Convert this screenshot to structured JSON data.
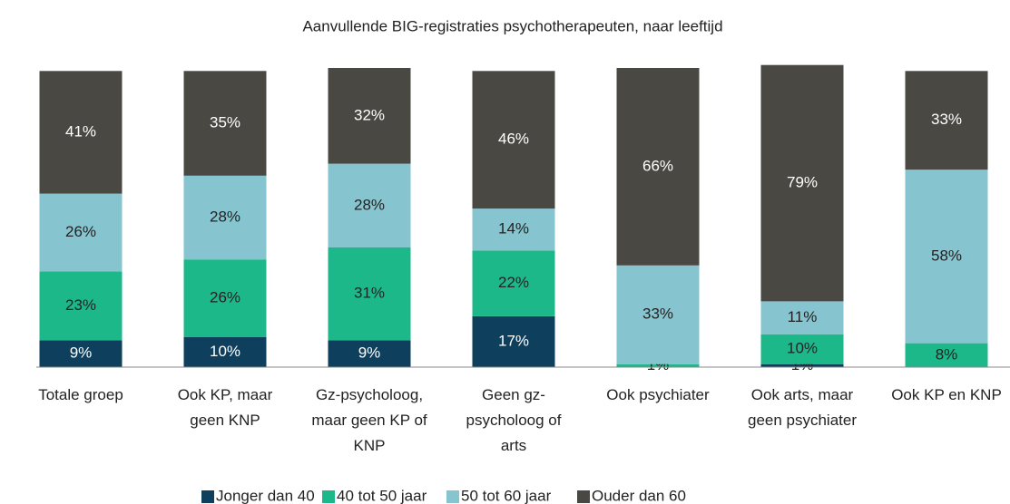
{
  "chart_data": {
    "type": "stacked_bar_100",
    "title": "Aanvullende BIG-registraties psychotherapeuten, naar leeftijd",
    "categories": [
      "Totale groep",
      "Ook KP, maar\ngeen KNP",
      "Gz-psycholoog,\nmaar geen KP of\nKNP",
      "Geen gz-\npsycholoog of\narts",
      "Ook psychiater",
      "Ook arts, maar\ngeen psychiater",
      "Ook KP en KNP"
    ],
    "ylim": [
      0,
      100
    ],
    "series": [
      {
        "name": "Jonger dan 40",
        "color": "#0e3f5c",
        "label_color": "#ffffff",
        "values": [
          9,
          10,
          9,
          17,
          null,
          1,
          null
        ],
        "value_labels": [
          "9%",
          "10%",
          "9%",
          "17%",
          null,
          "1%",
          null
        ]
      },
      {
        "name": "40 tot 50 jaar",
        "color": "#1db88a",
        "label_color": "#222222",
        "values": [
          23,
          26,
          31,
          22,
          1,
          10,
          8
        ],
        "value_labels": [
          "23%",
          "26%",
          "31%",
          "22%",
          "1%",
          "10%",
          "8%"
        ]
      },
      {
        "name": "50 tot 60 jaar",
        "color": "#86c5d0",
        "label_color": "#222222",
        "values": [
          26,
          28,
          28,
          14,
          33,
          11,
          58
        ],
        "value_labels": [
          "26%",
          "28%",
          "28%",
          "14%",
          "33%",
          "11%",
          "58%"
        ]
      },
      {
        "name": "Ouder dan 60",
        "color": "#4a4843",
        "label_color": "#ffffff",
        "values": [
          41,
          35,
          32,
          46,
          66,
          79,
          33
        ],
        "value_labels": [
          "41%",
          "35%",
          "32%",
          "46%",
          "66%",
          "79%",
          "33%"
        ]
      }
    ]
  }
}
